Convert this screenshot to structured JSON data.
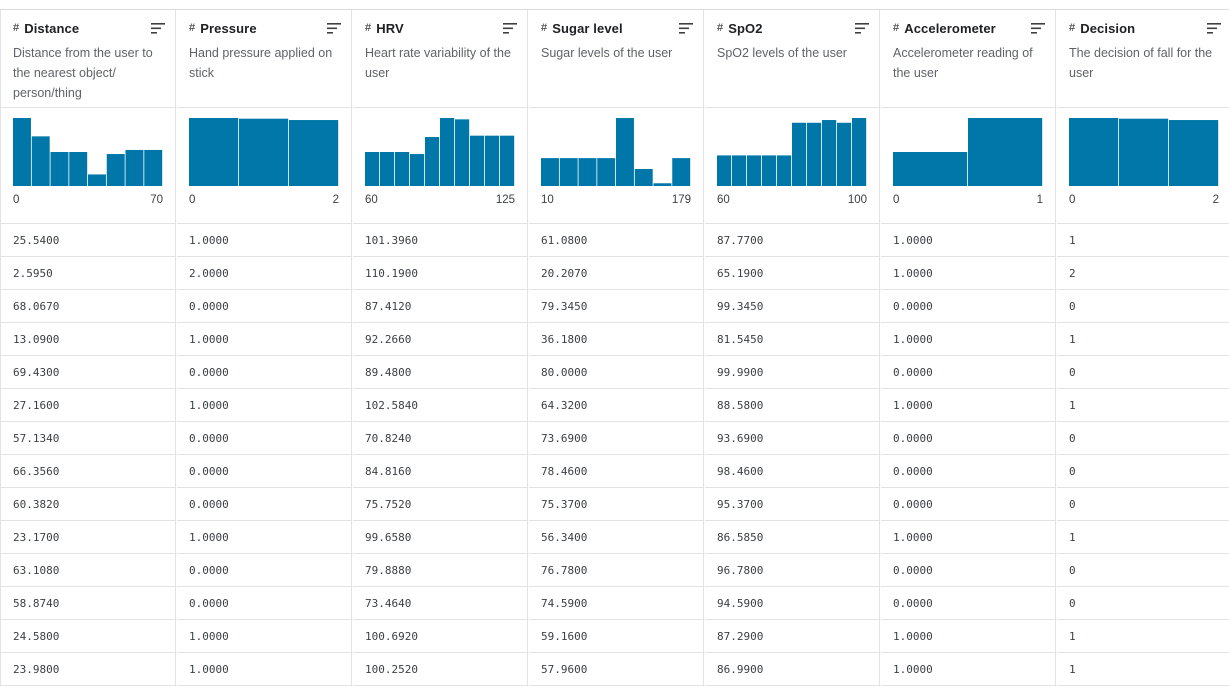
{
  "accent": "#0077a8",
  "columns": [
    {
      "key": "distance",
      "type_symbol": "#",
      "title": "Distance",
      "description": "Distance from the user to the nearest object/ person/thing",
      "histogram": [
        1.0,
        0.73,
        0.5,
        0.5,
        0.17,
        0.47,
        0.53,
        0.53
      ],
      "range_min": "0",
      "range_max": "70",
      "values": [
        "25.5400",
        "2.5950",
        "68.0670",
        "13.0900",
        "69.4300",
        "27.1600",
        "57.1340",
        "66.3560",
        "60.3820",
        "23.1700",
        "63.1080",
        "58.8740",
        "24.5800",
        "23.9800"
      ]
    },
    {
      "key": "pressure",
      "type_symbol": "#",
      "title": "Pressure",
      "description": "Hand pressure applied on stick",
      "histogram": [
        1.0,
        0.99,
        0.97
      ],
      "range_min": "0",
      "range_max": "2",
      "values": [
        "1.0000",
        "2.0000",
        "0.0000",
        "1.0000",
        "0.0000",
        "1.0000",
        "0.0000",
        "0.0000",
        "0.0000",
        "1.0000",
        "0.0000",
        "0.0000",
        "1.0000",
        "1.0000"
      ]
    },
    {
      "key": "hrv",
      "type_symbol": "#",
      "title": "HRV",
      "description": "Heart rate variability of the user",
      "histogram": [
        0.5,
        0.5,
        0.5,
        0.47,
        0.72,
        1.0,
        0.98,
        0.74,
        0.74,
        0.74
      ],
      "range_min": "60",
      "range_max": "125",
      "values": [
        "101.3960",
        "110.1900",
        "87.4120",
        "92.2660",
        "89.4800",
        "102.5840",
        "70.8240",
        "84.8160",
        "75.7520",
        "99.6580",
        "79.8880",
        "73.4640",
        "100.6920",
        "100.2520"
      ]
    },
    {
      "key": "sugar_level",
      "type_symbol": "#",
      "title": "Sugar level",
      "description": "Sugar levels of the user",
      "histogram": [
        0.41,
        0.41,
        0.41,
        0.41,
        1.0,
        0.25,
        0.04,
        0.41
      ],
      "range_min": "10",
      "range_max": "179",
      "values": [
        "61.0800",
        "20.2070",
        "79.3450",
        "36.1800",
        "80.0000",
        "64.3200",
        "73.6900",
        "78.4600",
        "75.3700",
        "56.3400",
        "76.7800",
        "74.5900",
        "59.1600",
        "57.9600"
      ]
    },
    {
      "key": "spo2",
      "type_symbol": "#",
      "title": "SpO2",
      "description": "SpO2 levels of the user",
      "histogram": [
        0.45,
        0.45,
        0.45,
        0.45,
        0.45,
        0.93,
        0.93,
        0.97,
        0.93,
        1.0
      ],
      "range_min": "60",
      "range_max": "100",
      "values": [
        "87.7700",
        "65.1900",
        "99.3450",
        "81.5450",
        "99.9900",
        "88.5800",
        "93.6900",
        "98.4600",
        "95.3700",
        "86.5850",
        "96.7800",
        "94.5900",
        "87.2900",
        "86.9900"
      ]
    },
    {
      "key": "accelerometer",
      "type_symbol": "#",
      "title": "Accelerometer",
      "description": "Accelerometer reading of the user",
      "histogram": [
        0.5,
        1.0
      ],
      "range_min": "0",
      "range_max": "1",
      "values": [
        "1.0000",
        "1.0000",
        "0.0000",
        "1.0000",
        "0.0000",
        "1.0000",
        "0.0000",
        "0.0000",
        "0.0000",
        "1.0000",
        "0.0000",
        "0.0000",
        "1.0000",
        "1.0000"
      ]
    },
    {
      "key": "decision",
      "type_symbol": "#",
      "title": "Decision",
      "description": "The decision of fall for the user",
      "histogram": [
        1.0,
        0.99,
        0.97
      ],
      "range_min": "0",
      "range_max": "2",
      "values": [
        "1",
        "2",
        "0",
        "1",
        "0",
        "1",
        "0",
        "0",
        "0",
        "1",
        "0",
        "0",
        "1",
        "1"
      ]
    }
  ]
}
